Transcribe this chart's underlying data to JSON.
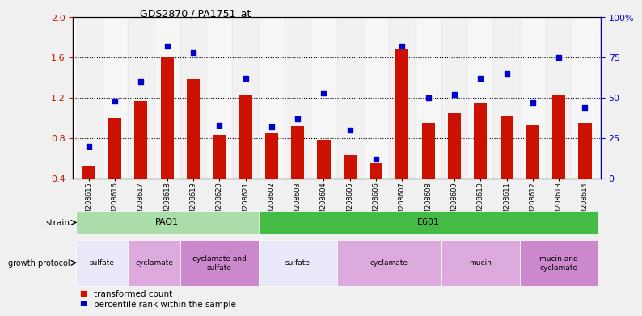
{
  "title": "GDS2870 / PA1751_at",
  "samples": [
    "GSM208615",
    "GSM208616",
    "GSM208617",
    "GSM208618",
    "GSM208619",
    "GSM208620",
    "GSM208621",
    "GSM208602",
    "GSM208603",
    "GSM208604",
    "GSM208605",
    "GSM208606",
    "GSM208607",
    "GSM208608",
    "GSM208609",
    "GSM208610",
    "GSM208611",
    "GSM208612",
    "GSM208613",
    "GSM208614"
  ],
  "transformed_count": [
    0.52,
    1.0,
    1.17,
    1.6,
    1.38,
    0.83,
    1.23,
    0.85,
    0.92,
    0.78,
    0.63,
    0.55,
    1.68,
    0.95,
    1.05,
    1.15,
    1.02,
    0.93,
    1.22,
    0.95
  ],
  "percentile_rank": [
    20,
    48,
    60,
    82,
    78,
    33,
    62,
    32,
    37,
    53,
    30,
    12,
    82,
    50,
    52,
    62,
    65,
    47,
    75,
    44
  ],
  "ylim_left": [
    0.4,
    2.0
  ],
  "ylim_right": [
    0,
    100
  ],
  "yticks_left": [
    0.4,
    0.8,
    1.2,
    1.6,
    2.0
  ],
  "yticks_right": [
    0,
    25,
    50,
    75,
    100
  ],
  "bar_color": "#cc1100",
  "dot_color": "#0000cc",
  "fig_bg_color": "#f0f0f0",
  "plot_bg_color": "#ffffff",
  "strain_segments": [
    {
      "label": "PAO1",
      "start": 0,
      "end": 6,
      "color": "#aaddaa"
    },
    {
      "label": "E601",
      "start": 7,
      "end": 19,
      "color": "#44bb44"
    }
  ],
  "protocol_segments": [
    {
      "label": "sulfate",
      "start": 0,
      "end": 1,
      "color": "#e8e8f8"
    },
    {
      "label": "cyclamate",
      "start": 2,
      "end": 3,
      "color": "#ddaadd"
    },
    {
      "label": "cyclamate and\nsulfate",
      "start": 4,
      "end": 6,
      "color": "#cc88cc"
    },
    {
      "label": "sulfate",
      "start": 7,
      "end": 9,
      "color": "#e8e8f8"
    },
    {
      "label": "cyclamate",
      "start": 10,
      "end": 13,
      "color": "#ddaadd"
    },
    {
      "label": "mucin",
      "start": 14,
      "end": 16,
      "color": "#ddaadd"
    },
    {
      "label": "mucin and\ncyclamate",
      "start": 17,
      "end": 19,
      "color": "#cc88cc"
    }
  ],
  "dotted_lines": [
    0.8,
    1.2,
    1.6
  ],
  "bar_width": 0.5
}
